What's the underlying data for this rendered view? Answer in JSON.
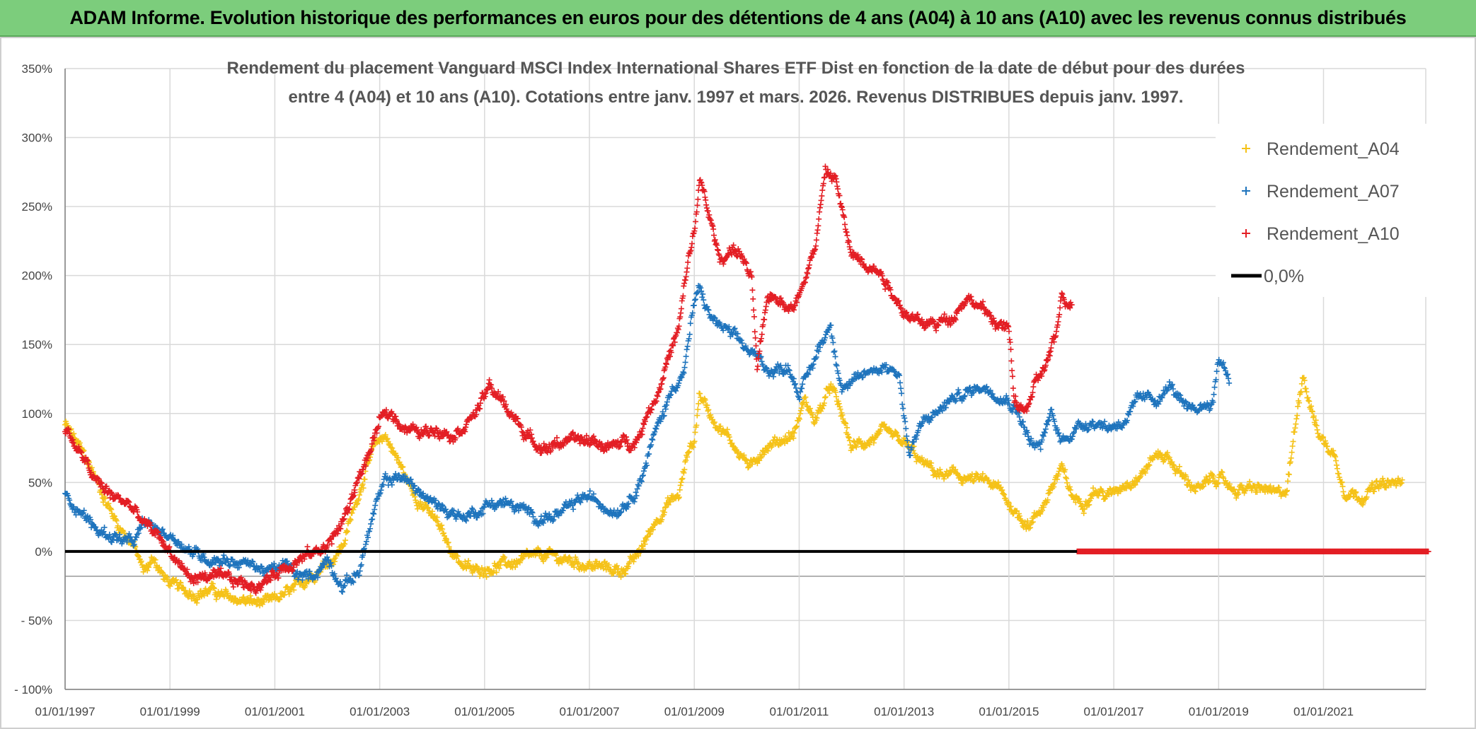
{
  "banner": {
    "text": "ADAM Informe. Evolution historique des performances en euros pour des détentions de 4 ans (A04) à 10 ans (A10) avec les revenus connus distribués"
  },
  "chart_data": {
    "type": "scatter",
    "title_line1": "Rendement du placement Vanguard MSCI Index International Shares ETF Dist en fonction de la date de début pour des durées",
    "title_line2": "entre 4 (A04) et 10 ans (A10). Cotations entre janv. 1997 et mars. 2026. Revenus DISTRIBUES depuis janv. 1997.",
    "xlabel": "",
    "ylabel": "",
    "x_range": [
      1997.0,
      2023.0
    ],
    "ylim": [
      -100,
      350
    ],
    "y_ticks": [
      {
        "value": -100,
        "label": "- 100%"
      },
      {
        "value": -50,
        "label": "- 50%"
      },
      {
        "value": 0,
        "label": "0%"
      },
      {
        "value": 50,
        "label": "50%"
      },
      {
        "value": 100,
        "label": "100%"
      },
      {
        "value": 150,
        "label": "150%"
      },
      {
        "value": 200,
        "label": "200%"
      },
      {
        "value": 250,
        "label": "250%"
      },
      {
        "value": 300,
        "label": "300%"
      },
      {
        "value": 350,
        "label": "350%"
      }
    ],
    "x_ticks": [
      {
        "value": 1997,
        "label": "01/01/1997"
      },
      {
        "value": 1999,
        "label": "01/01/1999"
      },
      {
        "value": 2001,
        "label": "01/01/2001"
      },
      {
        "value": 2003,
        "label": "01/01/2003"
      },
      {
        "value": 2005,
        "label": "01/01/2005"
      },
      {
        "value": 2007,
        "label": "01/01/2007"
      },
      {
        "value": 2009,
        "label": "01/01/2009"
      },
      {
        "value": 2011,
        "label": "01/01/2011"
      },
      {
        "value": 2013,
        "label": "01/01/2013"
      },
      {
        "value": 2015,
        "label": "01/01/2015"
      },
      {
        "value": 2017,
        "label": "01/01/2017"
      },
      {
        "value": 2019,
        "label": "01/01/2019"
      },
      {
        "value": 2021,
        "label": "01/01/2021"
      }
    ],
    "grid": true,
    "legend_position": "top-right",
    "series": [
      {
        "name": "Rendement_A04",
        "color": "#f5c218",
        "x": [
          1997.0,
          1997.2,
          1997.5,
          1997.8,
          1998.0,
          1998.3,
          1998.5,
          1998.7,
          1998.9,
          1999.2,
          1999.5,
          1999.8,
          2000.0,
          2000.3,
          2000.6,
          2000.9,
          2001.1,
          2001.4,
          2001.6,
          2001.9,
          2002.1,
          2002.3,
          2002.5,
          2002.7,
          2002.9,
          2003.1,
          2003.3,
          2003.6,
          2003.9,
          2004.1,
          2004.3,
          2004.6,
          2004.8,
          2005.0,
          2005.3,
          2005.6,
          2005.9,
          2006.2,
          2006.5,
          2006.8,
          2007.0,
          2007.3,
          2007.6,
          2007.9,
          2008.1,
          2008.3,
          2008.5,
          2008.7,
          2008.9,
          2009.0,
          2009.1,
          2009.3,
          2009.6,
          2009.9,
          2010.1,
          2010.3,
          2010.6,
          2010.9,
          2011.1,
          2011.3,
          2011.5,
          2011.6,
          2011.8,
          2012.0,
          2012.3,
          2012.6,
          2012.9,
          2013.1,
          2013.3,
          2013.5,
          2013.7,
          2014.0,
          2014.3,
          2014.6,
          2014.8,
          2015.0,
          2015.2,
          2015.4,
          2015.6,
          2015.8,
          2016.0,
          2016.2,
          2016.4,
          2016.6,
          2016.9,
          2017.2,
          2017.5,
          2017.8,
          2018.0,
          2018.2,
          2018.4,
          2018.7,
          2018.9,
          2019.1,
          2019.3,
          2019.6,
          2019.9,
          2020.1,
          2020.3,
          2020.6,
          2020.9,
          2021.1,
          2021.2,
          2021.4,
          2021.7,
          2021.9,
          2022.2,
          2022.5
        ],
        "y": [
          92,
          80,
          60,
          35,
          20,
          5,
          -15,
          -5,
          -20,
          -28,
          -30,
          -28,
          -33,
          -35,
          -37,
          -38,
          -33,
          -28,
          -20,
          -10,
          -5,
          5,
          30,
          55,
          75,
          85,
          70,
          45,
          30,
          20,
          5,
          -10,
          -15,
          -12,
          -10,
          -8,
          -5,
          -3,
          -6,
          -8,
          -10,
          -12,
          -14,
          -5,
          10,
          25,
          35,
          40,
          75,
          80,
          115,
          100,
          85,
          70,
          60,
          75,
          80,
          85,
          110,
          95,
          110,
          120,
          100,
          75,
          80,
          85,
          80,
          75,
          65,
          60,
          55,
          55,
          52,
          50,
          45,
          35,
          25,
          20,
          30,
          45,
          60,
          40,
          35,
          45,
          40,
          50,
          55,
          70,
          70,
          60,
          50,
          45,
          55,
          50,
          45,
          45,
          45,
          40,
          45,
          130,
          85,
          75,
          70,
          45,
          40,
          45,
          48,
          50
        ],
        "n": 2000
      },
      {
        "name": "Rendement_A07",
        "color": "#1f74bd",
        "x": [
          1997.0,
          1997.3,
          1997.6,
          1998.0,
          1998.3,
          1998.5,
          1998.8,
          1999.1,
          1999.4,
          1999.7,
          2000.0,
          2000.3,
          2000.6,
          2000.9,
          2001.2,
          2001.5,
          2001.8,
          2002.0,
          2002.3,
          2002.6,
          2002.9,
          2003.1,
          2003.4,
          2003.7,
          2004.0,
          2004.3,
          2004.6,
          2004.9,
          2005.1,
          2005.4,
          2005.7,
          2006.0,
          2006.3,
          2006.6,
          2006.9,
          2007.2,
          2007.5,
          2007.8,
          2008.0,
          2008.2,
          2008.4,
          2008.6,
          2008.8,
          2009.0,
          2009.1,
          2009.3,
          2009.6,
          2009.9,
          2010.2,
          2010.5,
          2010.8,
          2011.0,
          2011.2,
          2011.4,
          2011.6,
          2011.8,
          2012.0,
          2012.3,
          2012.6,
          2012.9,
          2013.1,
          2013.3,
          2013.6,
          2013.9,
          2014.2,
          2014.5,
          2014.8,
          2015.0,
          2015.2,
          2015.4,
          2015.6,
          2015.8,
          2016.0,
          2016.3,
          2016.6,
          2016.9,
          2017.2,
          2017.5,
          2017.8,
          2018.1,
          2018.4,
          2018.7,
          2018.9,
          2019.0,
          2019.1,
          2019.2
        ],
        "y": [
          40,
          30,
          15,
          10,
          5,
          20,
          15,
          10,
          0,
          -5,
          -5,
          -8,
          -10,
          -15,
          -10,
          -20,
          -15,
          -5,
          -25,
          -15,
          30,
          50,
          55,
          45,
          35,
          30,
          25,
          30,
          35,
          35,
          30,
          25,
          25,
          30,
          40,
          35,
          30,
          40,
          55,
          80,
          100,
          120,
          130,
          180,
          190,
          170,
          160,
          150,
          140,
          130,
          135,
          115,
          130,
          150,
          165,
          120,
          120,
          130,
          135,
          130,
          70,
          90,
          100,
          110,
          115,
          120,
          115,
          110,
          100,
          80,
          75,
          100,
          80,
          90,
          95,
          90,
          95,
          110,
          110,
          120,
          100,
          105,
          110,
          140,
          135,
          125
        ],
        "n": 1600
      },
      {
        "name": "Rendement_A10",
        "color": "#e31e24",
        "x": [
          1997.0,
          1997.3,
          1997.6,
          1997.9,
          1998.2,
          1998.5,
          1998.8,
          1999.1,
          1999.4,
          1999.7,
          2000.0,
          2000.3,
          2000.6,
          2000.9,
          2001.2,
          2001.5,
          2001.8,
          2002.0,
          2002.2,
          2002.4,
          2002.6,
          2002.8,
          2003.0,
          2003.2,
          2003.5,
          2003.8,
          2004.1,
          2004.4,
          2004.7,
          2004.9,
          2005.1,
          2005.3,
          2005.6,
          2005.9,
          2006.2,
          2006.5,
          2006.8,
          2007.1,
          2007.4,
          2007.7,
          2007.9,
          2008.1,
          2008.3,
          2008.5,
          2008.7,
          2008.9,
          2009.0,
          2009.1,
          2009.3,
          2009.5,
          2009.7,
          2009.9,
          2010.1,
          2010.2,
          2010.4,
          2010.6,
          2010.9,
          2011.1,
          2011.3,
          2011.5,
          2011.7,
          2011.9,
          2012.0,
          2012.3,
          2012.6,
          2012.9,
          2013.1,
          2013.3,
          2013.6,
          2013.9,
          2014.2,
          2014.5,
          2014.8,
          2015.0,
          2015.1,
          2015.3,
          2015.5,
          2015.7,
          2015.9,
          2016.0,
          2016.2
        ],
        "y": [
          90,
          70,
          50,
          40,
          35,
          20,
          10,
          -5,
          -20,
          -18,
          -20,
          -22,
          -25,
          -20,
          -10,
          -5,
          0,
          5,
          15,
          30,
          55,
          70,
          95,
          100,
          90,
          85,
          90,
          85,
          95,
          105,
          120,
          110,
          95,
          80,
          75,
          80,
          80,
          80,
          75,
          80,
          80,
          100,
          115,
          140,
          160,
          215,
          230,
          270,
          240,
          210,
          220,
          215,
          195,
          130,
          185,
          185,
          175,
          200,
          220,
          275,
          270,
          230,
          215,
          210,
          200,
          180,
          170,
          165,
          165,
          170,
          185,
          175,
          165,
          160,
          110,
          100,
          120,
          135,
          155,
          185,
          180
        ],
        "n": 1700
      },
      {
        "name": "0,0%",
        "color": "#000000",
        "x": [
          1997.0,
          2023.0
        ],
        "y": [
          0,
          0
        ]
      }
    ],
    "zero_marks": {
      "color": "#e31e24",
      "x_start": 2016.3,
      "x_end": 2023.0,
      "value": 0,
      "n": 700
    }
  }
}
